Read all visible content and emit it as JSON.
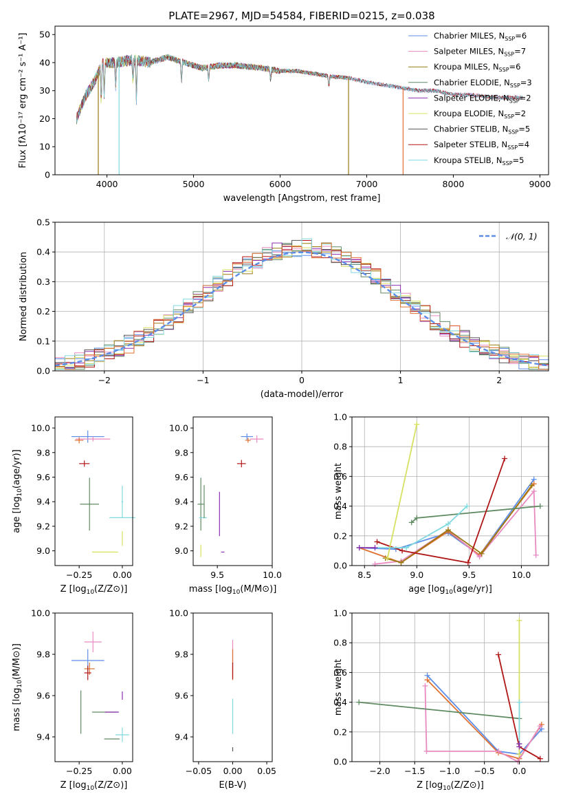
{
  "title": "PLATE=2967, MJD=54584, FIBERID=0215, z=0.038",
  "chart_data": [
    {
      "id": "spectrum",
      "type": "line",
      "xlabel": "wavelength [Angstrom, rest frame]",
      "ylabel": "Flux [fλ10⁻¹⁷ erg cm⁻² s⁻¹ A⁻¹]",
      "xlim": [
        3400,
        9100
      ],
      "ylim": [
        0,
        53
      ],
      "xticks": [
        4000,
        5000,
        6000,
        7000,
        8000,
        9000
      ],
      "yticks": [
        0,
        10,
        20,
        30,
        40,
        50
      ],
      "continuum": [
        [
          3650,
          20
        ],
        [
          3750,
          28
        ],
        [
          3850,
          33
        ],
        [
          3950,
          40
        ],
        [
          4100,
          40
        ],
        [
          4300,
          41
        ],
        [
          4500,
          40
        ],
        [
          4700,
          42
        ],
        [
          4900,
          40
        ],
        [
          5100,
          38
        ],
        [
          5300,
          39
        ],
        [
          5500,
          39
        ],
        [
          5800,
          38
        ],
        [
          6000,
          37
        ],
        [
          6200,
          37
        ],
        [
          6400,
          36
        ],
        [
          6600,
          35
        ],
        [
          6800,
          34.5
        ],
        [
          7000,
          33
        ],
        [
          7200,
          32
        ],
        [
          7400,
          31
        ],
        [
          7600,
          30
        ],
        [
          7800,
          30
        ],
        [
          8000,
          28.5
        ],
        [
          8200,
          28.5
        ],
        [
          8500,
          27.5
        ],
        [
          8800,
          27.5
        ]
      ],
      "series": [
        {
          "name": "Chabrier MILES, N$_{SSP}$=6",
          "label": "Chabrier MILES, N",
          "sub": "SSP",
          "n": "=6",
          "color": "#5b8de8",
          "end": 8800
        },
        {
          "name": "Salpeter MILES, N$_{SSP}$=7",
          "label": "Salpeter MILES, N",
          "sub": "SSP",
          "n": "=7",
          "color": "#e88ac0",
          "end": 8800
        },
        {
          "name": "Kroupa MILES, N$_{SSP}$=6",
          "label": "Kroupa MILES, N",
          "sub": "SSP",
          "n": "=6",
          "color": "#9a7a10",
          "end": 6800
        },
        {
          "name": "Chabrier ELODIE, N$_{SSP}$=3",
          "label": "Chabrier ELODIE, N",
          "sub": "SSP",
          "n": "=3",
          "color": "#5e8a62",
          "end": 6800
        },
        {
          "name": "Salpeter ELODIE, N$_{SSP}$=2",
          "label": "Salpeter ELODIE, N",
          "sub": "SSP",
          "n": "=2",
          "color": "#8a2fb0",
          "end": 6800
        },
        {
          "name": "Kroupa ELODIE, N$_{SSP}$=2",
          "label": "Kroupa ELODIE, N",
          "sub": "SSP",
          "n": "=2",
          "color": "#d8e060",
          "end": 6800
        },
        {
          "name": "Chabrier STELIB, N$_{SSP}$=5",
          "label": "Chabrier STELIB, N",
          "sub": "SSP",
          "n": "=5",
          "color": "#555555",
          "end": 8800
        },
        {
          "name": "Salpeter STELIB, N$_{SSP}$=4",
          "label": "Salpeter STELIB, N",
          "sub": "SSP",
          "n": "=4",
          "color": "#b01515",
          "end": 8800
        },
        {
          "name": "Kroupa STELIB, N$_{SSP}$=5",
          "label": "Kroupa STELIB, N",
          "sub": "SSP",
          "n": "=5",
          "color": "#80d8e0",
          "end": 8800
        }
      ],
      "dropouts": [
        [
          3900,
          "#9a7a10"
        ],
        [
          4140,
          "#80d8e0"
        ],
        [
          6790,
          "#9a7a10"
        ],
        [
          7420,
          "#e07030"
        ]
      ],
      "legend_loc": "upper right"
    },
    {
      "id": "residuals",
      "type": "histogram",
      "xlabel": "(data-model)/error",
      "ylabel": "Normed distribution",
      "xlim": [
        -2.5,
        2.5
      ],
      "ylim": [
        0,
        0.5
      ],
      "xticks": [
        -2,
        -1,
        0,
        1,
        2
      ],
      "yticks": [
        0.0,
        0.1,
        0.2,
        0.3,
        0.4,
        0.5
      ],
      "bin_width": 0.1,
      "reference": {
        "name": "𝒩(0, 1)",
        "color": "#5b8de8",
        "style": "dashed"
      },
      "colors": [
        "#5b8de8",
        "#e88ac0",
        "#9a7a10",
        "#5e8a62",
        "#8a2fb0",
        "#d8e060",
        "#555555",
        "#b01515",
        "#80d8e0",
        "#e07030"
      ],
      "legend_loc": "upper right",
      "grid": true
    },
    {
      "id": "age-vs-Z",
      "type": "errorbar",
      "xlabel": "Z [log10(Z/Z⊙)]",
      "ylabel": "age  [log10(age/yr)]",
      "xlim": [
        -0.39,
        0.06
      ],
      "ylim": [
        8.88,
        10.09
      ],
      "xticks": [
        -0.25,
        0.0
      ],
      "yticks": [
        9.0,
        9.2,
        9.4,
        9.6,
        9.8,
        10.0
      ],
      "points": [
        {
          "x": -0.2,
          "y": 9.93,
          "ex": 0.19,
          "ey": 0.1,
          "color": "#5b8de8"
        },
        {
          "x": -0.17,
          "y": 9.91,
          "ex": 0.2,
          "ey": 0.04,
          "color": "#e88ac0"
        },
        {
          "x": -0.25,
          "y": 9.9,
          "ex": 0.05,
          "ey": 0.05,
          "color": "#e07030"
        },
        {
          "x": -0.22,
          "y": 9.71,
          "ex": 0.06,
          "ey": 0.05,
          "color": "#b01515"
        },
        {
          "x": -0.19,
          "y": 9.38,
          "ex": 0.11,
          "ey": 0.43,
          "color": "#5e8a62"
        },
        {
          "x": 0.0,
          "y": 9.27,
          "ex": 0.15,
          "ey": 0.0,
          "color": "#80d8e0"
        },
        {
          "x": 0.0,
          "y": 9.4,
          "ex": 0.01,
          "ey": 0.26,
          "color": "#80d8e0"
        },
        {
          "x": -0.1,
          "y": 8.99,
          "ex": 0.15,
          "ey": 0.0,
          "color": "#d8e060"
        },
        {
          "x": 0.0,
          "y": 9.1,
          "ex": 0.0,
          "ey": 0.12,
          "color": "#d8e060"
        },
        {
          "x": -0.24,
          "y": 8.99,
          "ex": 0.0,
          "ey": 0.0,
          "color": "#5e8a62"
        }
      ]
    },
    {
      "id": "age-vs-mass",
      "type": "errorbar",
      "xlabel": "mass [log10(M/M⊙)]",
      "ylabel": "",
      "xlim": [
        9.28,
        10.0
      ],
      "ylim": [
        8.88,
        10.09
      ],
      "xticks": [
        9.5,
        10.0
      ],
      "yticks": [
        9.0,
        9.2,
        9.4,
        9.6,
        9.8,
        10.0
      ],
      "points": [
        {
          "x": 9.77,
          "y": 9.93,
          "ex": 0.11,
          "ey": 0.05,
          "color": "#5b8de8"
        },
        {
          "x": 9.86,
          "y": 9.91,
          "ex": 0.12,
          "ey": 0.06,
          "color": "#e88ac0"
        },
        {
          "x": 9.78,
          "y": 9.9,
          "ex": 0.05,
          "ey": 0.04,
          "color": "#e07030"
        },
        {
          "x": 9.72,
          "y": 9.71,
          "ex": 0.08,
          "ey": 0.06,
          "color": "#b01515"
        },
        {
          "x": 9.35,
          "y": 9.38,
          "ex": 0.06,
          "ey": 0.43,
          "color": "#5e8a62"
        },
        {
          "x": 9.37,
          "y": 9.27,
          "ex": 0.07,
          "ey": 0.0,
          "color": "#80d8e0"
        },
        {
          "x": 9.38,
          "y": 9.4,
          "ex": 0.0,
          "ey": 0.27,
          "color": "#5e8a62"
        },
        {
          "x": 9.52,
          "y": 9.3,
          "ex": 0.0,
          "ey": 0.36,
          "color": "#8a2fb0"
        },
        {
          "x": 9.55,
          "y": 8.99,
          "ex": 0.03,
          "ey": 0.0,
          "color": "#8a2fb0"
        },
        {
          "x": 9.35,
          "y": 9.0,
          "ex": 0.0,
          "ey": 0.1,
          "color": "#d8e060"
        }
      ]
    },
    {
      "id": "weight-vs-age",
      "type": "line",
      "xlabel": "age  [log10(age/yr)]",
      "ylabel": "mass weight",
      "xlim": [
        8.38,
        10.26
      ],
      "ylim": [
        0.0,
        1.0
      ],
      "xticks": [
        8.5,
        9.0,
        9.5,
        10.0
      ],
      "yticks": [
        0.0,
        0.2,
        0.4,
        0.6,
        0.8,
        1.0
      ],
      "grid": true,
      "series": [
        {
          "color": "#5b8de8",
          "points": [
            [
              8.45,
              0.12
            ],
            [
              8.8,
              0.11
            ],
            [
              9.3,
              0.22
            ],
            [
              9.6,
              0.07
            ],
            [
              10.12,
              0.58
            ]
          ]
        },
        {
          "color": "#e07030",
          "points": [
            [
              8.45,
              0.12
            ],
            [
              8.85,
              0.02
            ],
            [
              9.3,
              0.23
            ],
            [
              9.6,
              0.07
            ],
            [
              10.12,
              0.55
            ]
          ]
        },
        {
          "color": "#e88ac0",
          "points": [
            [
              8.6,
              0.01
            ],
            [
              8.85,
              0.03
            ],
            [
              9.3,
              0.24
            ],
            [
              9.6,
              0.06
            ],
            [
              10.12,
              0.5
            ],
            [
              10.14,
              0.07
            ]
          ]
        },
        {
          "color": "#9a7a10",
          "points": [
            [
              8.7,
              0.05
            ],
            [
              8.85,
              0.02
            ],
            [
              9.3,
              0.24
            ],
            [
              9.62,
              0.08
            ],
            [
              10.1,
              0.54
            ]
          ]
        },
        {
          "color": "#5e8a62",
          "points": [
            [
              8.95,
              0.29
            ],
            [
              9.0,
              0.32
            ],
            [
              10.18,
              0.4
            ]
          ]
        },
        {
          "color": "#b01515",
          "points": [
            [
              8.62,
              0.16
            ],
            [
              8.86,
              0.1
            ],
            [
              9.49,
              0.02
            ],
            [
              9.84,
              0.72
            ]
          ]
        },
        {
          "color": "#d8e060",
          "points": [
            [
              8.72,
              0.05
            ],
            [
              9.0,
              0.95
            ]
          ]
        },
        {
          "color": "#80d8e0",
          "points": [
            [
              8.45,
              0.12
            ],
            [
              8.9,
              0.12
            ],
            [
              9.3,
              0.28
            ],
            [
              9.48,
              0.4
            ]
          ]
        },
        {
          "color": "#8a2fb0",
          "points": [
            [
              8.45,
              0.12
            ],
            [
              8.6,
              0.12
            ]
          ]
        }
      ]
    },
    {
      "id": "mass-vs-Z",
      "type": "errorbar",
      "xlabel": "Z [log10(Z/Z⊙)]",
      "ylabel": "mass [log10(M/M⊙)]",
      "xlim": [
        -0.39,
        0.06
      ],
      "ylim": [
        9.28,
        10.0
      ],
      "xticks": [
        -0.25,
        0.0
      ],
      "yticks": [
        9.4,
        9.6,
        9.8,
        10.0
      ],
      "points": [
        {
          "x": -0.2,
          "y": 9.77,
          "ex": 0.19,
          "ey": 0.11,
          "color": "#5b8de8"
        },
        {
          "x": -0.17,
          "y": 9.86,
          "ex": 0.1,
          "ey": 0.1,
          "color": "#e88ac0"
        },
        {
          "x": -0.19,
          "y": 9.73,
          "ex": 0.06,
          "ey": 0.06,
          "color": "#e07030"
        },
        {
          "x": -0.2,
          "y": 9.71,
          "ex": 0.04,
          "ey": 0.07,
          "color": "#b01515"
        },
        {
          "x": -0.24,
          "y": 9.52,
          "ex": 0.0,
          "ey": 0.21,
          "color": "#5e8a62"
        },
        {
          "x": -0.1,
          "y": 9.52,
          "ex": 0.15,
          "ey": 0.0,
          "color": "#5e8a62"
        },
        {
          "x": -0.06,
          "y": 9.52,
          "ex": 0.08,
          "ey": 0.0,
          "color": "#8a2fb0"
        },
        {
          "x": 0.0,
          "y": 9.6,
          "ex": 0.0,
          "ey": 0.04,
          "color": "#8a2fb0"
        },
        {
          "x": 0.0,
          "y": 9.41,
          "ex": 0.08,
          "ey": 0.07,
          "color": "#80d8e0"
        },
        {
          "x": -0.06,
          "y": 9.39,
          "ex": 0.09,
          "ey": 0.0,
          "color": "#5e8a62"
        }
      ]
    },
    {
      "id": "mass-vs-ebv",
      "type": "errorbar",
      "xlabel": "E(B-V)",
      "ylabel": "",
      "xlim": [
        -0.058,
        0.058
      ],
      "ylim": [
        9.28,
        10.0
      ],
      "xticks": [
        -0.05,
        0.0,
        0.05
      ],
      "yticks": [
        9.4,
        9.6,
        9.8,
        10.0
      ],
      "points": [
        {
          "x": 0.0,
          "y": 9.78,
          "ex": 0.0,
          "ey": 0.18,
          "color": "#e88ac0"
        },
        {
          "x": 0.0,
          "y": 9.75,
          "ex": 0.0,
          "ey": 0.15,
          "color": "#e07030"
        },
        {
          "x": 0.0,
          "y": 9.72,
          "ex": 0.0,
          "ey": 0.08,
          "color": "#b01515"
        },
        {
          "x": 0.0,
          "y": 9.5,
          "ex": 0.0,
          "ey": 0.17,
          "color": "#80d8e0"
        },
        {
          "x": 0.0,
          "y": 9.34,
          "ex": 0.0,
          "ey": 0.02,
          "color": "#555555"
        }
      ]
    },
    {
      "id": "weight-vs-Z",
      "type": "line",
      "xlabel": "Z [log10(Z/Z⊙)]",
      "ylabel": "mass weight",
      "xlim": [
        -2.4,
        0.42
      ],
      "ylim": [
        0.0,
        1.0
      ],
      "xticks": [
        -2.0,
        -1.5,
        -1.0,
        -0.5,
        0.0
      ],
      "yticks": [
        0.0,
        0.2,
        0.4,
        0.6,
        0.8,
        1.0
      ],
      "grid": true,
      "series": [
        {
          "color": "#5b8de8",
          "points": [
            [
              -1.32,
              0.58
            ],
            [
              -0.3,
              0.07
            ],
            [
              0.0,
              0.05
            ],
            [
              0.32,
              0.22
            ]
          ]
        },
        {
          "color": "#e07030",
          "points": [
            [
              -1.32,
              0.55
            ],
            [
              -0.3,
              0.06
            ],
            [
              0.0,
              0.02
            ],
            [
              0.32,
              0.25
            ]
          ]
        },
        {
          "color": "#e88ac0",
          "points": [
            [
              -1.35,
              0.51
            ],
            [
              -1.33,
              0.07
            ],
            [
              -0.3,
              0.07
            ],
            [
              -0.02,
              0.0
            ],
            [
              0.3,
              0.24
            ]
          ]
        },
        {
          "color": "#5e8a62",
          "points": [
            [
              -2.3,
              0.4
            ],
            [
              0.0,
              0.29
            ]
          ]
        },
        {
          "color": "#b01515",
          "points": [
            [
              -0.3,
              0.72
            ],
            [
              0.0,
              0.1
            ],
            [
              0.3,
              0.02
            ]
          ]
        },
        {
          "color": "#d8e060",
          "points": [
            [
              0.0,
              0.95
            ],
            [
              0.0,
              0.05
            ]
          ]
        },
        {
          "color": "#80d8e0",
          "points": [
            [
              0.0,
              0.4
            ],
            [
              0.0,
              0.12
            ]
          ]
        },
        {
          "color": "#8a2fb0",
          "points": [
            [
              0.0,
              0.12
            ],
            [
              0.0,
              0.1
            ]
          ]
        }
      ]
    }
  ]
}
